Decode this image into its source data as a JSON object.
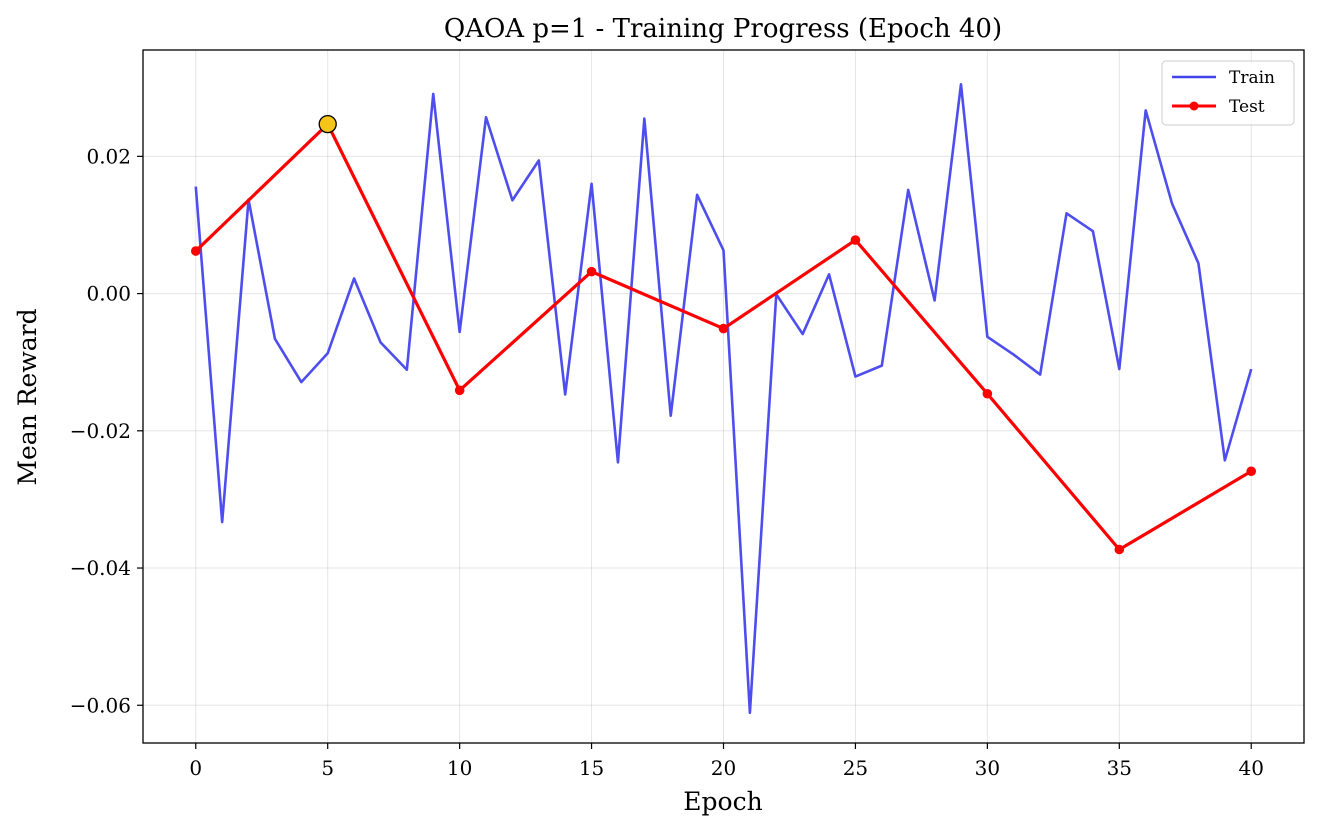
{
  "chart_data": {
    "type": "line",
    "title": "QAOA p=1 - Training Progress (Epoch 40)",
    "xlabel": "Epoch",
    "ylabel": "Mean Reward",
    "xlim": [
      -2,
      42
    ],
    "ylim": [
      -0.0655,
      0.0355
    ],
    "xticks": [
      0,
      5,
      10,
      15,
      20,
      25,
      30,
      35,
      40
    ],
    "xtick_labels": [
      "0",
      "5",
      "10",
      "15",
      "20",
      "25",
      "30",
      "35",
      "40"
    ],
    "yticks": [
      0.02,
      0.0,
      -0.02,
      -0.04,
      -0.06
    ],
    "ytick_labels": [
      "0.02",
      "0.00",
      "−0.02",
      "−0.04",
      "−0.06"
    ],
    "grid": true,
    "legend_position": "top-right",
    "series": [
      {
        "name": "Train",
        "color": "#4444ee",
        "x": [
          0,
          1,
          2,
          3,
          4,
          5,
          6,
          7,
          8,
          9,
          10,
          11,
          12,
          13,
          14,
          15,
          16,
          17,
          18,
          19,
          20,
          21,
          22,
          23,
          24,
          25,
          26,
          27,
          28,
          29,
          30,
          31,
          32,
          33,
          34,
          35,
          36,
          37,
          38,
          39,
          40
        ],
        "y": [
          0.0156,
          -0.0333,
          0.0137,
          -0.0066,
          -0.0129,
          -0.0087,
          0.0022,
          -0.0071,
          -0.0111,
          0.0291,
          -0.0056,
          0.0257,
          0.0136,
          0.0194,
          -0.0147,
          0.016,
          -0.0246,
          0.0255,
          -0.0178,
          0.0144,
          0.0063,
          -0.0611,
          -0.0001,
          -0.0059,
          0.0028,
          -0.0121,
          -0.0105,
          0.0151,
          -0.001,
          0.0305,
          -0.0063,
          -0.0089,
          -0.0118,
          0.0117,
          0.0091,
          -0.011,
          0.0267,
          0.0131,
          0.0044,
          -0.0243,
          -0.011
        ]
      },
      {
        "name": "Test",
        "color": "#ff0000",
        "x": [
          0,
          5,
          10,
          15,
          20,
          25,
          30,
          35,
          40
        ],
        "y": [
          0.0062,
          0.0247,
          -0.0141,
          0.0032,
          -0.0051,
          0.0078,
          -0.0146,
          -0.0373,
          -0.0259
        ]
      }
    ],
    "highlight_point": {
      "x": 5,
      "y": 0.0247,
      "color": "#f5c518"
    }
  }
}
